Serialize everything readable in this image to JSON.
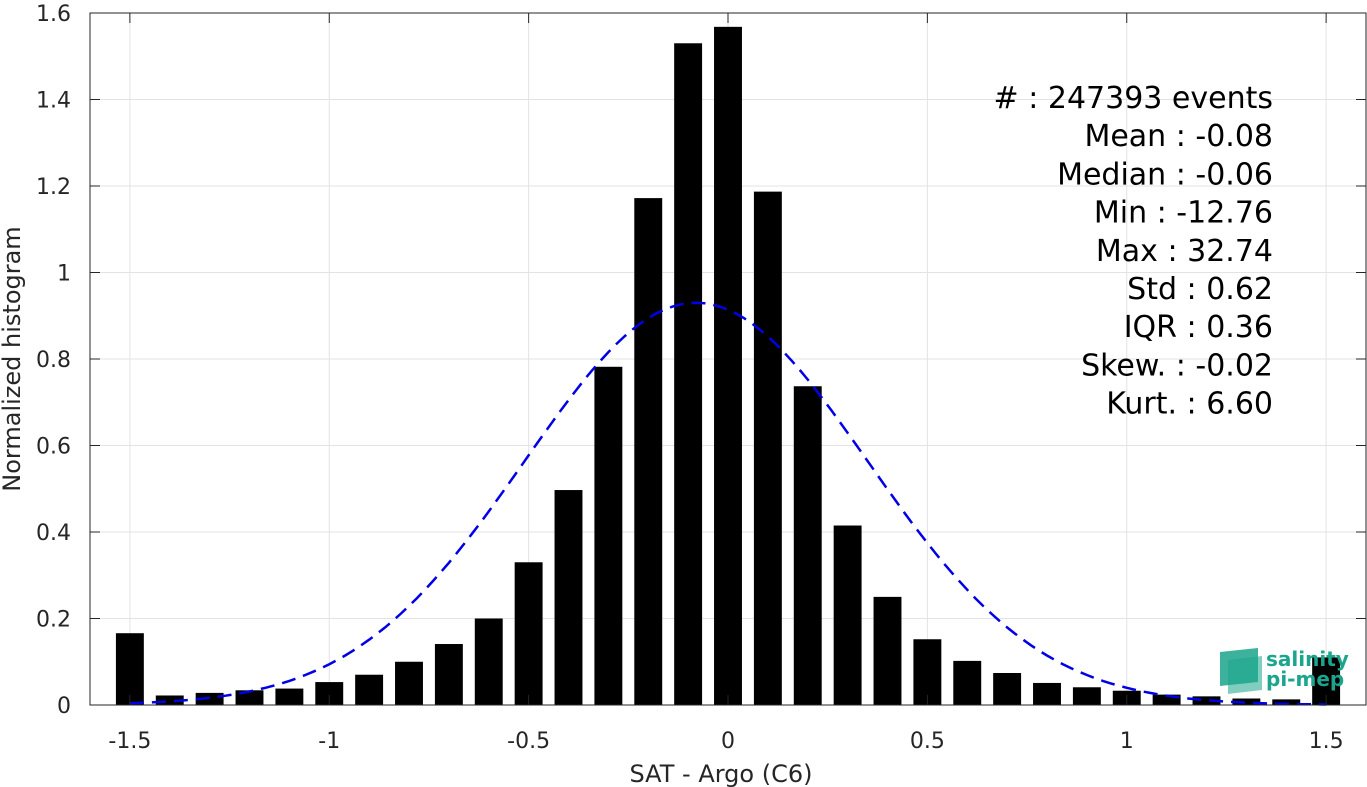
{
  "chart_data": {
    "type": "bar",
    "xlabel": "SAT - Argo (C6)",
    "ylabel": "Normalized histogram",
    "xlim": [
      -1.6,
      1.6
    ],
    "ylim": [
      0,
      1.6
    ],
    "grid": true,
    "x_ticks": [
      "-1.5",
      "-1",
      "-0.5",
      "0",
      "0.5",
      "1",
      "1.5"
    ],
    "y_ticks": [
      "0",
      "0.2",
      "0.4",
      "0.6",
      "0.8",
      "1",
      "1.2",
      "1.4",
      "1.6"
    ],
    "x": [
      -1.5,
      -1.4,
      -1.3,
      -1.2,
      -1.1,
      -1.0,
      -0.9,
      -0.8,
      -0.7,
      -0.6,
      -0.5,
      -0.4,
      -0.3,
      -0.2,
      -0.1,
      0.0,
      0.1,
      0.2,
      0.3,
      0.4,
      0.5,
      0.6,
      0.7,
      0.8,
      0.9,
      1.0,
      1.1,
      1.2,
      1.3,
      1.4,
      1.5
    ],
    "values": [
      0.166,
      0.022,
      0.028,
      0.034,
      0.038,
      0.053,
      0.07,
      0.1,
      0.141,
      0.2,
      0.33,
      0.497,
      0.782,
      1.172,
      1.53,
      1.568,
      1.187,
      0.737,
      0.415,
      0.25,
      0.152,
      0.102,
      0.074,
      0.051,
      0.041,
      0.033,
      0.024,
      0.02,
      0.015,
      0.013,
      0.11
    ],
    "bar_color": "#000000",
    "fit_curve": {
      "style": "dashed",
      "color": "#0000e6",
      "mean": -0.08,
      "std": 0.43,
      "peak": 0.93
    },
    "stats": [
      "#  : 247393 events",
      "Mean : -0.08",
      "Median : -0.06",
      "Min : -12.76",
      "Max : 32.74",
      "Std : 0.62",
      "IQR : 0.36",
      "Skew. : -0.02",
      "Kurt. : 6.60"
    ]
  },
  "logo": {
    "line1": "salinity",
    "line2": "pi-mep",
    "color": "#1aa58c"
  }
}
